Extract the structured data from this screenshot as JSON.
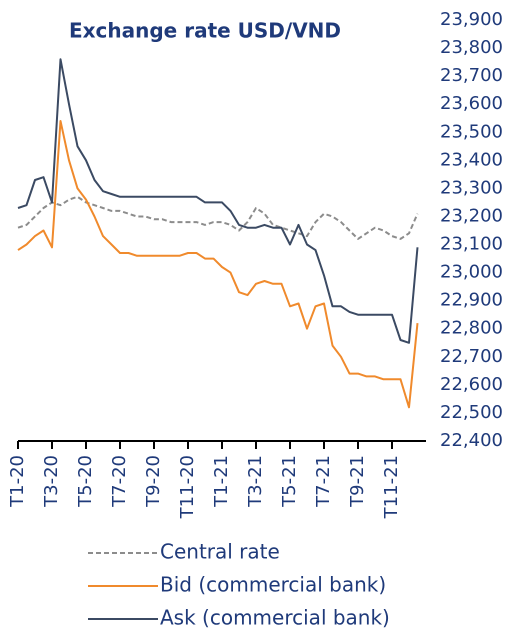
{
  "chart_data": {
    "type": "line",
    "title": "Exchange rate USD/VND",
    "categories": [
      "T1-20",
      null,
      null,
      null,
      "T3-20",
      null,
      null,
      null,
      "T5-20",
      null,
      null,
      null,
      "T7-20",
      null,
      null,
      null,
      "T9-20",
      null,
      null,
      null,
      "T11-20",
      null,
      null,
      null,
      "T1-21",
      null,
      null,
      null,
      "T3-21",
      null,
      null,
      null,
      "T5-21",
      null,
      null,
      null,
      "T7-21",
      null,
      null,
      null,
      "T9-21",
      null,
      null,
      null,
      "T11-21",
      null,
      null,
      null
    ],
    "series": [
      {
        "name": "Central rate",
        "color": "#8c8c8c",
        "dashed": true,
        "values": [
          23160,
          23170,
          23200,
          23230,
          23250,
          23240,
          23260,
          23270,
          23250,
          23240,
          23230,
          23220,
          23220,
          23210,
          23200,
          23200,
          23190,
          23190,
          23180,
          23180,
          23180,
          23180,
          23170,
          23180,
          23180,
          23170,
          23150,
          23180,
          23230,
          23210,
          23170,
          23160,
          23150,
          23140,
          23130,
          23180,
          23210,
          23200,
          23180,
          23150,
          23120,
          23140,
          23160,
          23150,
          23130,
          23120,
          23140,
          23210
        ]
      },
      {
        "name": "Bid (commercial bank)",
        "color": "#f08a2c",
        "values": [
          23080,
          23100,
          23130,
          23150,
          23090,
          23540,
          23400,
          23300,
          23260,
          23200,
          23130,
          23100,
          23070,
          23070,
          23060,
          23060,
          23060,
          23060,
          23060,
          23060,
          23070,
          23070,
          23050,
          23050,
          23020,
          23000,
          22930,
          22920,
          22960,
          22970,
          22960,
          22960,
          22880,
          22890,
          22800,
          22880,
          22890,
          22740,
          22700,
          22640,
          22640,
          22630,
          22630,
          22620,
          22620,
          22620,
          22520,
          22820
        ]
      },
      {
        "name": "Ask (commercial bank)",
        "color": "#3b4a63",
        "values": [
          23230,
          23240,
          23330,
          23340,
          23250,
          23760,
          23600,
          23450,
          23400,
          23330,
          23290,
          23280,
          23270,
          23270,
          23270,
          23270,
          23270,
          23270,
          23270,
          23270,
          23270,
          23270,
          23250,
          23250,
          23250,
          23220,
          23170,
          23160,
          23160,
          23170,
          23160,
          23160,
          23100,
          23170,
          23100,
          23080,
          22990,
          22880,
          22880,
          22860,
          22850,
          22850,
          22850,
          22850,
          22850,
          22760,
          22750,
          23090
        ]
      }
    ],
    "ylim": [
      22400,
      23900
    ],
    "yticks": [
      {
        "value": 22400,
        "label": "22,400"
      },
      {
        "value": 22500,
        "label": "22,500"
      },
      {
        "value": 22600,
        "label": "22,600"
      },
      {
        "value": 22700,
        "label": "22,700"
      },
      {
        "value": 22800,
        "label": "22,800"
      },
      {
        "value": 22900,
        "label": "22,900"
      },
      {
        "value": 23000,
        "label": "23,000"
      },
      {
        "value": 23100,
        "label": "23,100"
      },
      {
        "value": 23200,
        "label": "23,200"
      },
      {
        "value": 23300,
        "label": "23,300"
      },
      {
        "value": 23400,
        "label": "23,400"
      },
      {
        "value": 23500,
        "label": "23,500"
      },
      {
        "value": 23600,
        "label": "23,600"
      },
      {
        "value": 23700,
        "label": "23,700"
      },
      {
        "value": 23800,
        "label": "23,800"
      },
      {
        "value": 23900,
        "label": "23,900"
      }
    ],
    "grid": false,
    "legend": "bottom"
  }
}
